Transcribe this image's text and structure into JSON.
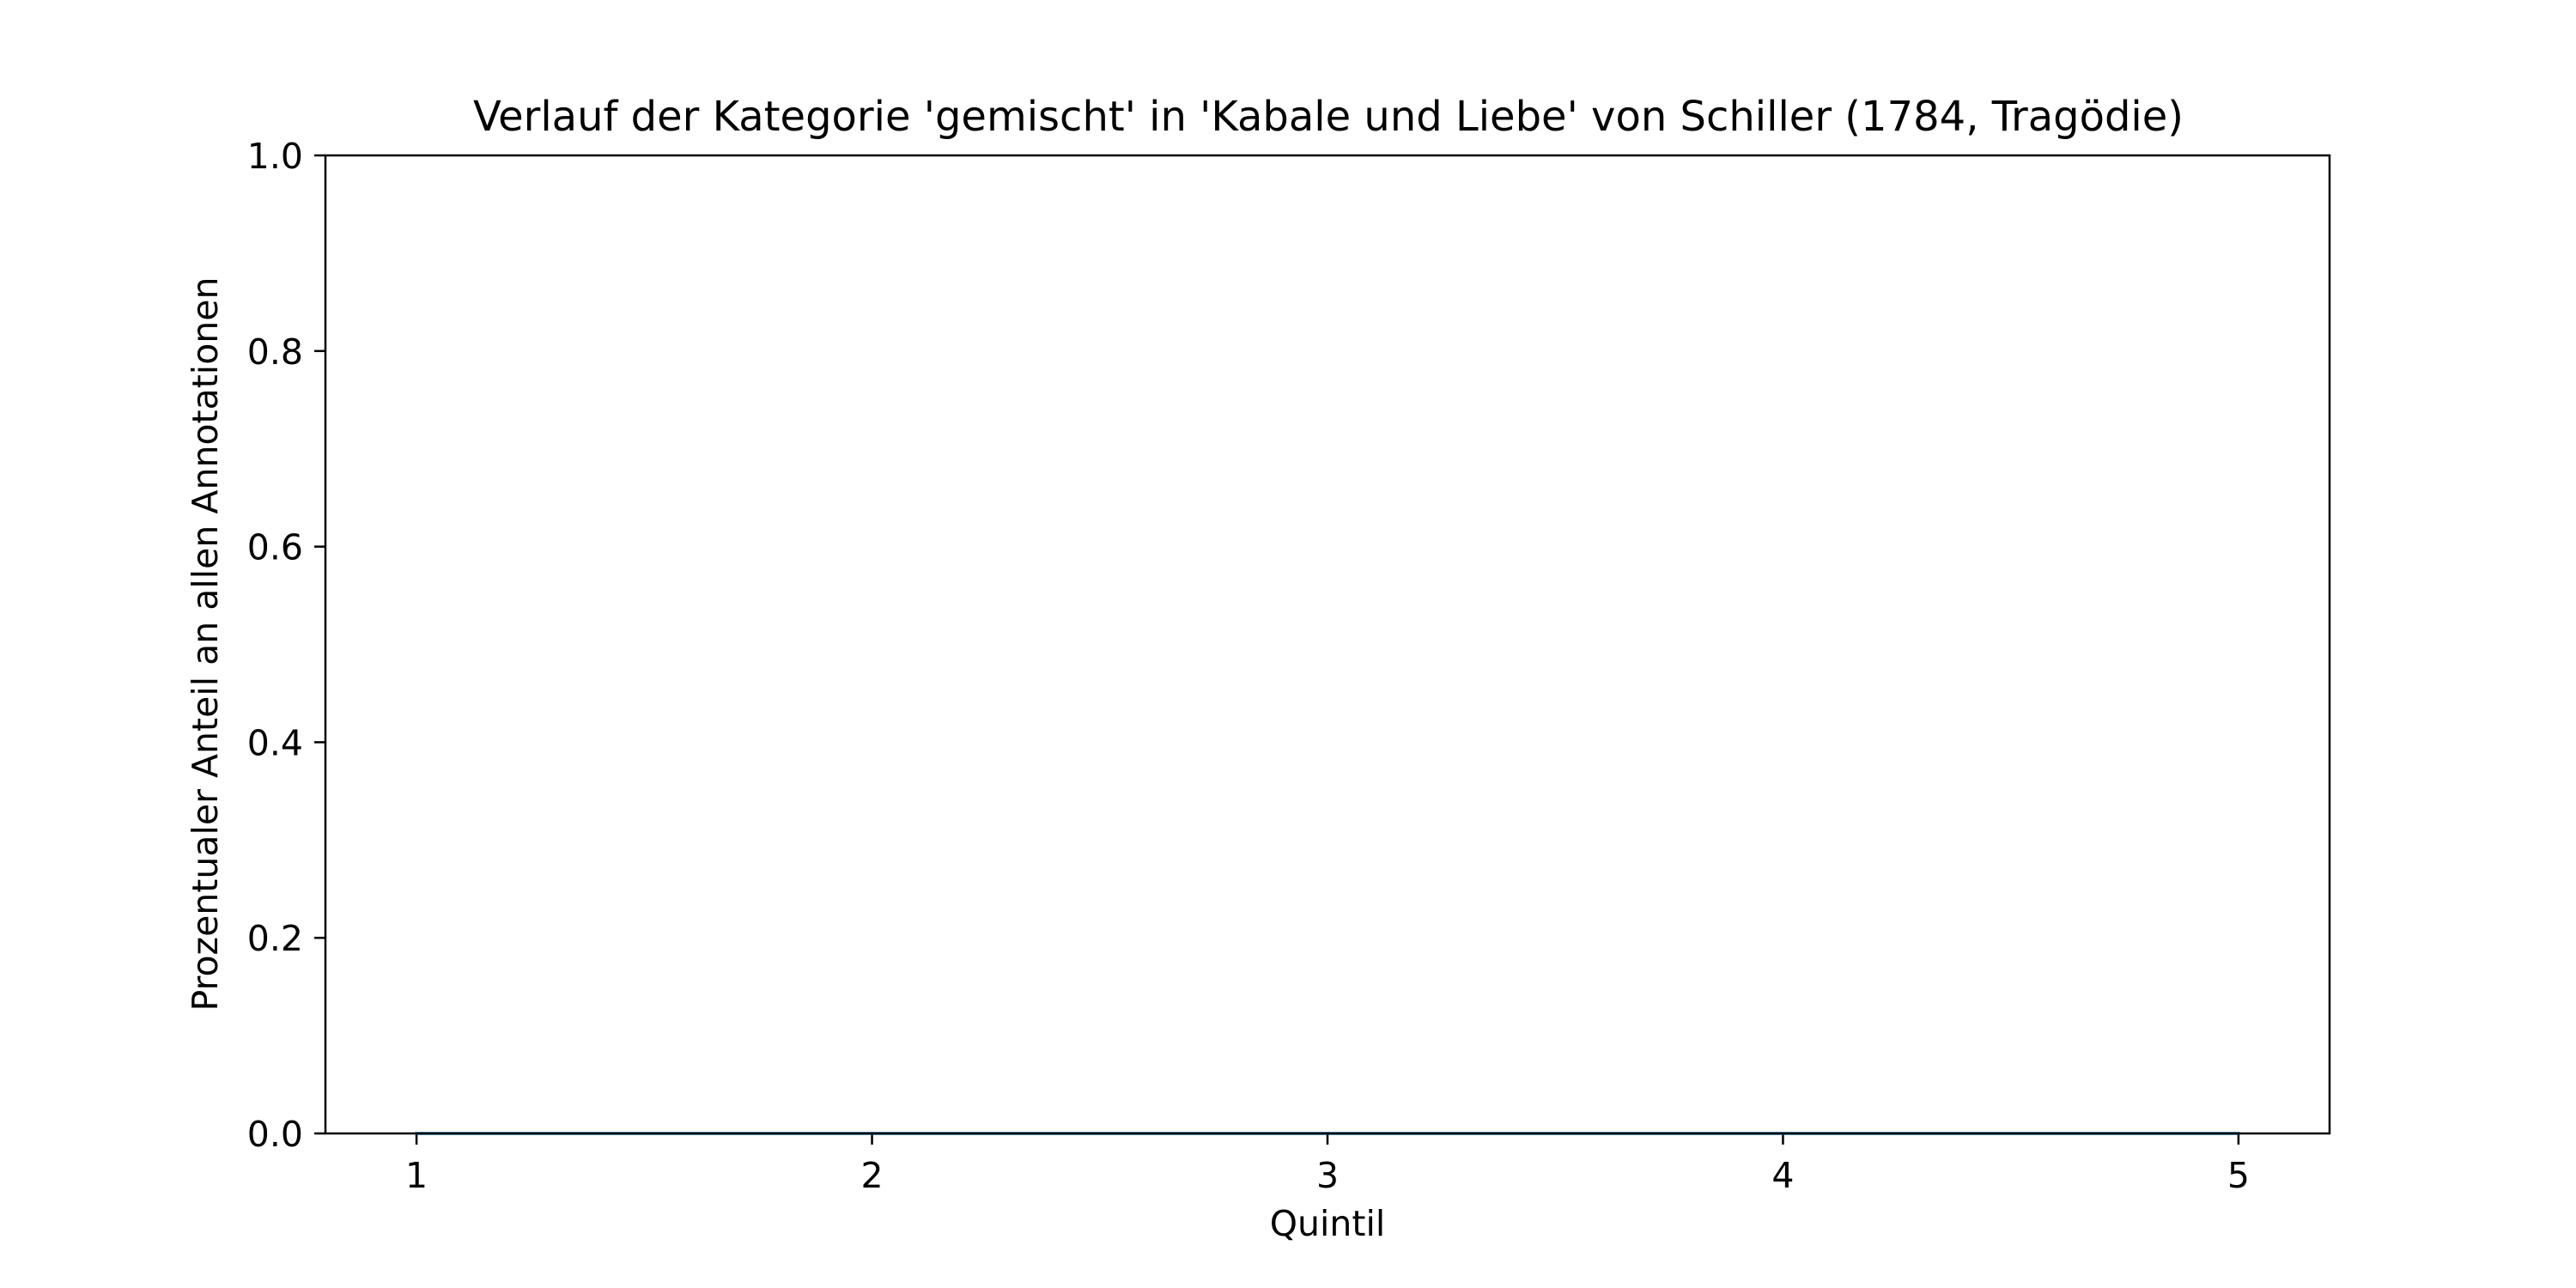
{
  "chart_data": {
    "type": "line",
    "title": "Verlauf der Kategorie 'gemischt' in 'Kabale und Liebe' von Schiller (1784, Tragödie)",
    "xlabel": "Quintil",
    "ylabel": "Prozentualer Anteil an allen Annotationen",
    "x": [
      1,
      2,
      3,
      4,
      5
    ],
    "series": [
      {
        "values": [
          0,
          0,
          0,
          0,
          0
        ],
        "color": "#1f77b4"
      }
    ],
    "xlim": [
      0.8,
      5.2
    ],
    "ylim": [
      0,
      1
    ],
    "xticks": [
      "1",
      "2",
      "3",
      "4",
      "5"
    ],
    "yticks": [
      "0.0",
      "0.2",
      "0.4",
      "0.6",
      "0.8",
      "1.0"
    ],
    "grid": false,
    "legend": "none"
  }
}
